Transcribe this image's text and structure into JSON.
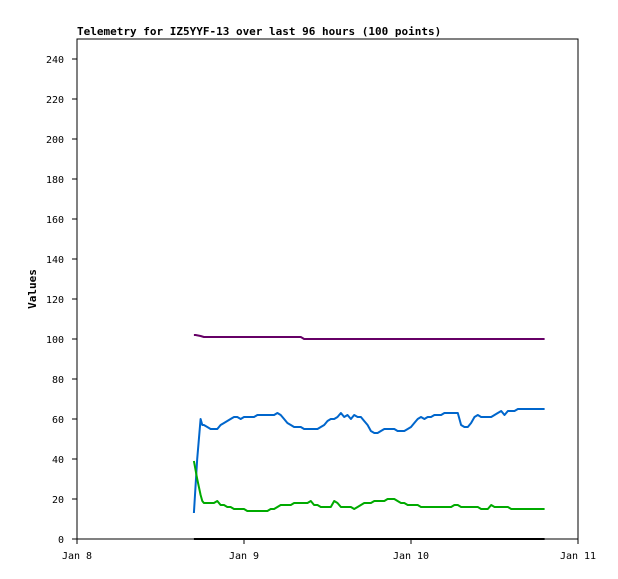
{
  "chart_data": {
    "type": "line",
    "title": "Telemetry for IZ5YYF-13 over last 96 hours (100 points)",
    "xlabel": "",
    "ylabel": "Values",
    "xlim": [
      0,
      3
    ],
    "ylim": [
      0,
      250
    ],
    "xticks": [
      {
        "value": 0,
        "label": "Jan 8"
      },
      {
        "value": 1,
        "label": "Jan 9"
      },
      {
        "value": 2,
        "label": "Jan 10"
      },
      {
        "value": 3,
        "label": "Jan 11"
      }
    ],
    "yticks": [
      0,
      20,
      40,
      60,
      80,
      100,
      120,
      140,
      160,
      180,
      200,
      220,
      240
    ],
    "grid": false,
    "legend": "none",
    "series": [
      {
        "color": "#660066",
        "x": [
          0.7,
          0.71,
          0.74,
          0.76,
          0.8,
          0.85,
          0.9,
          0.95,
          1.0,
          1.05,
          1.1,
          1.15,
          1.2,
          1.25,
          1.3,
          1.34,
          1.35,
          1.36,
          1.4,
          1.5,
          1.6,
          1.7,
          1.8,
          1.9,
          2.0,
          2.1,
          2.2,
          2.3,
          2.4,
          2.5,
          2.6,
          2.7,
          2.8
        ],
        "y": [
          102,
          102,
          101.5,
          101,
          101,
          101,
          101,
          101,
          101,
          101,
          101,
          101,
          101,
          101,
          101,
          101,
          100.5,
          100,
          100,
          100,
          100,
          100,
          100,
          100,
          100,
          100,
          100,
          100,
          100,
          100,
          100,
          100,
          100
        ]
      },
      {
        "color": "#0066cc",
        "x": [
          0.7,
          0.72,
          0.74,
          0.75,
          0.76,
          0.78,
          0.8,
          0.82,
          0.84,
          0.86,
          0.88,
          0.9,
          0.92,
          0.94,
          0.96,
          0.98,
          1.0,
          1.02,
          1.04,
          1.06,
          1.08,
          1.1,
          1.12,
          1.14,
          1.16,
          1.18,
          1.2,
          1.22,
          1.24,
          1.26,
          1.28,
          1.3,
          1.32,
          1.34,
          1.36,
          1.38,
          1.4,
          1.42,
          1.44,
          1.46,
          1.48,
          1.5,
          1.52,
          1.54,
          1.56,
          1.58,
          1.6,
          1.62,
          1.64,
          1.66,
          1.68,
          1.7,
          1.72,
          1.74,
          1.76,
          1.78,
          1.8,
          1.82,
          1.84,
          1.86,
          1.88,
          1.9,
          1.92,
          1.94,
          1.96,
          1.98,
          2.0,
          2.02,
          2.04,
          2.06,
          2.08,
          2.1,
          2.12,
          2.14,
          2.16,
          2.18,
          2.2,
          2.22,
          2.24,
          2.26,
          2.28,
          2.3,
          2.32,
          2.34,
          2.36,
          2.38,
          2.4,
          2.42,
          2.44,
          2.46,
          2.48,
          2.5,
          2.52,
          2.54,
          2.56,
          2.58,
          2.6,
          2.62,
          2.64,
          2.68,
          2.72,
          2.76,
          2.8
        ],
        "y": [
          13,
          40,
          60,
          57,
          57,
          56,
          55,
          55,
          55,
          57,
          58,
          59,
          60,
          61,
          61,
          60,
          61,
          61,
          61,
          61,
          62,
          62,
          62,
          62,
          62,
          62,
          63,
          62,
          60,
          58,
          57,
          56,
          56,
          56,
          55,
          55,
          55,
          55,
          55,
          56,
          57,
          59,
          60,
          60,
          61,
          63,
          61,
          62,
          60,
          62,
          61,
          61,
          59,
          57,
          54,
          53,
          53,
          54,
          55,
          55,
          55,
          55,
          54,
          54,
          54,
          55,
          56,
          58,
          60,
          61,
          60,
          61,
          61,
          62,
          62,
          62,
          63,
          63,
          63,
          63,
          63,
          57,
          56,
          56,
          58,
          61,
          62,
          61,
          61,
          61,
          61,
          62,
          63,
          64,
          62,
          64,
          64,
          64,
          65,
          65,
          65,
          65,
          65
        ]
      },
      {
        "color": "#00aa00",
        "x": [
          0.7,
          0.72,
          0.74,
          0.75,
          0.76,
          0.78,
          0.8,
          0.82,
          0.84,
          0.86,
          0.88,
          0.9,
          0.92,
          0.94,
          0.96,
          0.98,
          1.0,
          1.02,
          1.04,
          1.06,
          1.08,
          1.1,
          1.12,
          1.14,
          1.16,
          1.18,
          1.2,
          1.22,
          1.24,
          1.26,
          1.28,
          1.3,
          1.32,
          1.34,
          1.36,
          1.38,
          1.4,
          1.42,
          1.44,
          1.46,
          1.48,
          1.5,
          1.52,
          1.54,
          1.56,
          1.58,
          1.6,
          1.62,
          1.64,
          1.66,
          1.68,
          1.7,
          1.72,
          1.74,
          1.76,
          1.78,
          1.8,
          1.82,
          1.84,
          1.86,
          1.88,
          1.9,
          1.92,
          1.94,
          1.96,
          1.98,
          2.0,
          2.02,
          2.04,
          2.06,
          2.08,
          2.1,
          2.12,
          2.14,
          2.16,
          2.18,
          2.2,
          2.22,
          2.24,
          2.26,
          2.28,
          2.3,
          2.32,
          2.34,
          2.36,
          2.38,
          2.4,
          2.42,
          2.44,
          2.46,
          2.48,
          2.5,
          2.52,
          2.54,
          2.56,
          2.58,
          2.6,
          2.64,
          2.68,
          2.72,
          2.76,
          2.8
        ],
        "y": [
          39,
          30,
          22,
          19,
          18,
          18,
          18,
          18,
          19,
          17,
          17,
          16,
          16,
          15,
          15,
          15,
          15,
          14,
          14,
          14,
          14,
          14,
          14,
          14,
          15,
          15,
          16,
          17,
          17,
          17,
          17,
          18,
          18,
          18,
          18,
          18,
          19,
          17,
          17,
          16,
          16,
          16,
          16,
          19,
          18,
          16,
          16,
          16,
          16,
          15,
          16,
          17,
          18,
          18,
          18,
          19,
          19,
          19,
          19,
          20,
          20,
          20,
          19,
          18,
          18,
          17,
          17,
          17,
          17,
          16,
          16,
          16,
          16,
          16,
          16,
          16,
          16,
          16,
          16,
          17,
          17,
          16,
          16,
          16,
          16,
          16,
          16,
          15,
          15,
          15,
          17,
          16,
          16,
          16,
          16,
          16,
          15,
          15,
          15,
          15,
          15,
          15
        ]
      },
      {
        "color": "#000000",
        "x": [
          0.7,
          2.8
        ],
        "y": [
          0,
          0
        ]
      }
    ]
  }
}
